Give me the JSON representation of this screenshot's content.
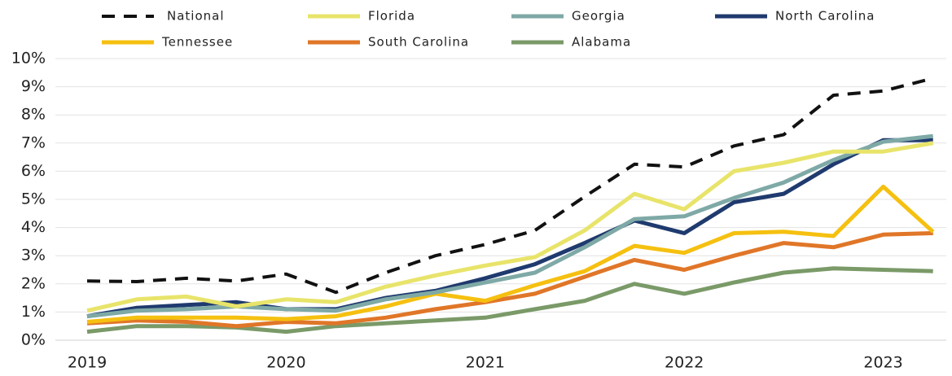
{
  "chart_data": {
    "type": "line",
    "categories": [
      "2019",
      null,
      null,
      null,
      "2020",
      null,
      null,
      null,
      "2021",
      null,
      null,
      null,
      "2022",
      null,
      null,
      null,
      "2023",
      null
    ],
    "series": [
      {
        "name": "National",
        "color": "#111111",
        "dashed": true,
        "values": [
          2.1,
          2.08,
          2.2,
          2.1,
          2.35,
          1.7,
          2.4,
          3.0,
          3.4,
          3.9,
          5.1,
          6.25,
          6.15,
          6.9,
          7.3,
          8.7,
          8.85,
          9.3
        ]
      },
      {
        "name": "Florida",
        "color": "#e8e46a",
        "values": [
          1.05,
          1.45,
          1.55,
          1.2,
          1.45,
          1.35,
          1.9,
          2.3,
          2.65,
          2.95,
          3.9,
          5.2,
          4.65,
          6.0,
          6.3,
          6.7,
          6.7,
          7.0
        ]
      },
      {
        "name": "Georgia",
        "color": "#7ea9a6",
        "values": [
          0.85,
          1.05,
          1.1,
          1.2,
          1.1,
          1.05,
          1.45,
          1.7,
          2.05,
          2.4,
          3.3,
          4.3,
          4.4,
          5.05,
          5.6,
          6.4,
          7.05,
          7.25
        ]
      },
      {
        "name": "North Carolina",
        "color": "#1f3a6e",
        "values": [
          0.85,
          1.15,
          1.25,
          1.35,
          1.1,
          1.1,
          1.5,
          1.75,
          2.2,
          2.7,
          3.45,
          4.25,
          3.8,
          4.9,
          5.2,
          6.25,
          7.1,
          7.1
        ]
      },
      {
        "name": "Tennessee",
        "color": "#f5c010",
        "values": [
          0.65,
          0.8,
          0.8,
          0.8,
          0.75,
          0.85,
          1.2,
          1.65,
          1.4,
          1.95,
          2.45,
          3.35,
          3.1,
          3.8,
          3.85,
          3.7,
          5.45,
          3.85
        ]
      },
      {
        "name": "South Carolina",
        "color": "#e07628",
        "values": [
          0.6,
          0.7,
          0.65,
          0.5,
          0.65,
          0.6,
          0.8,
          1.1,
          1.35,
          1.65,
          2.25,
          2.85,
          2.5,
          3.0,
          3.45,
          3.3,
          3.75,
          3.8
        ]
      },
      {
        "name": "Alabama",
        "color": "#7a9a68",
        "values": [
          0.3,
          0.5,
          0.5,
          0.45,
          0.3,
          0.5,
          0.6,
          0.7,
          0.8,
          1.1,
          1.4,
          2.0,
          1.65,
          2.05,
          2.4,
          2.55,
          2.5,
          2.45
        ]
      }
    ],
    "ylim": [
      0,
      10
    ],
    "yticks": [
      {
        "value": 0,
        "label": "0%"
      },
      {
        "value": 1,
        "label": "1%"
      },
      {
        "value": 2,
        "label": "2%"
      },
      {
        "value": 3,
        "label": "3%"
      },
      {
        "value": 4,
        "label": "4%"
      },
      {
        "value": 5,
        "label": "5%"
      },
      {
        "value": 6,
        "label": "6%"
      },
      {
        "value": 7,
        "label": "7%"
      },
      {
        "value": 8,
        "label": "8%"
      },
      {
        "value": 9,
        "label": "9%"
      },
      {
        "value": 10,
        "label": "10%"
      }
    ],
    "grid": true,
    "legend": "top"
  }
}
